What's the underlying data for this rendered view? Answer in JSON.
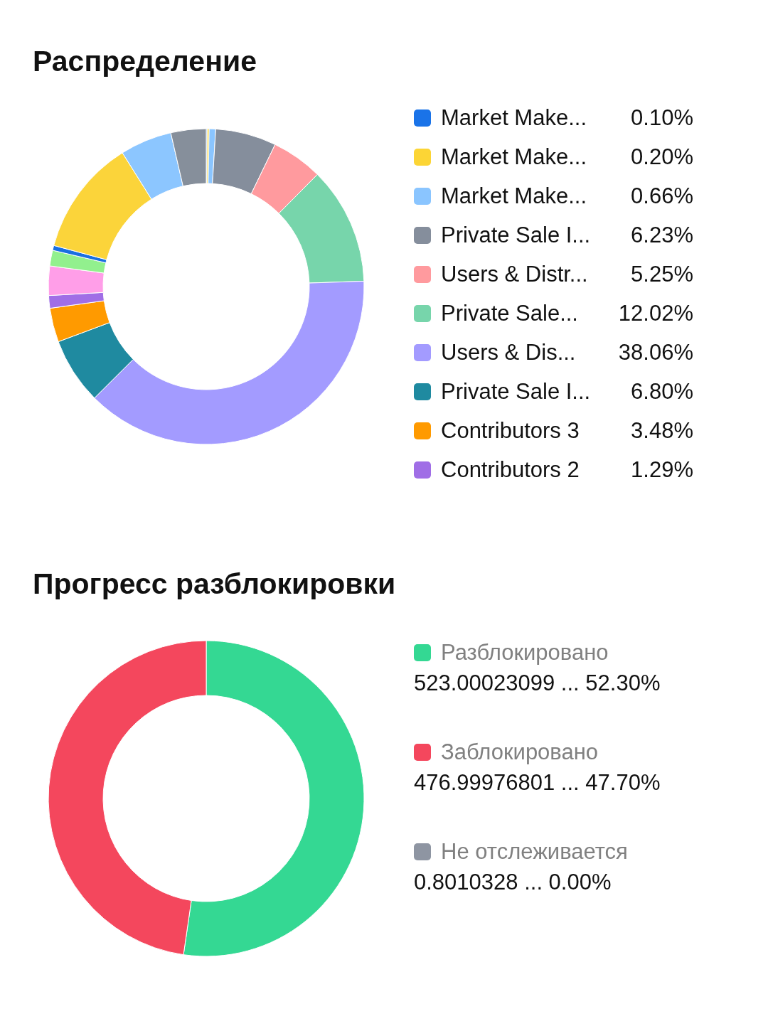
{
  "chart_data": [
    {
      "type": "donut",
      "title": "Распределение",
      "categories": [
        "Market Make...",
        "Market Make...",
        "Market Make...",
        "Private Sale I...",
        "Users & Distr...",
        "Private Sale...",
        "Users & Dis...",
        "Private Sale I...",
        "Contributors 3",
        "Contributors 2",
        null,
        null,
        null,
        null,
        null,
        null
      ],
      "values": [
        0.1,
        0.2,
        0.66,
        6.23,
        5.25,
        12.02,
        38.06,
        6.8,
        3.48,
        1.29,
        3.0,
        1.6,
        0.5,
        11.9,
        5.3,
        3.61
      ],
      "value_labels": [
        "0.10%",
        "0.20%",
        "0.66%",
        "6.23%",
        "5.25%",
        "12.02%",
        "38.06%",
        "6.80%",
        "3.48%",
        "1.29%",
        null,
        null,
        null,
        null,
        null,
        null
      ],
      "colors": [
        "#1a73e8",
        "#fcd535",
        "#8ac5ff",
        "#858e9c",
        "#ff9a9e",
        "#77d5ab",
        "#a39bff",
        "#1f8aa0",
        "#ff9a00",
        "#a06ee6",
        "#ff9ee8",
        "#92f08e",
        "#1a6fe0",
        "#fbd43a",
        "#8cc6ff",
        "#868f9b"
      ],
      "legend": "right"
    },
    {
      "type": "donut",
      "title": "Прогресс разблокировки",
      "categories": [
        "Разблокировано",
        "Заблокировано",
        "Не отслеживается"
      ],
      "values": [
        52.3,
        47.7,
        0.0
      ],
      "value_labels": [
        "523.00023099 ... 52.30%",
        "476.99976801 ... 47.70%",
        "0.8010328 ... 0.00%"
      ],
      "colors": [
        "#34d893",
        "#f4475d",
        "#8e95a2"
      ],
      "legend": "right"
    }
  ]
}
